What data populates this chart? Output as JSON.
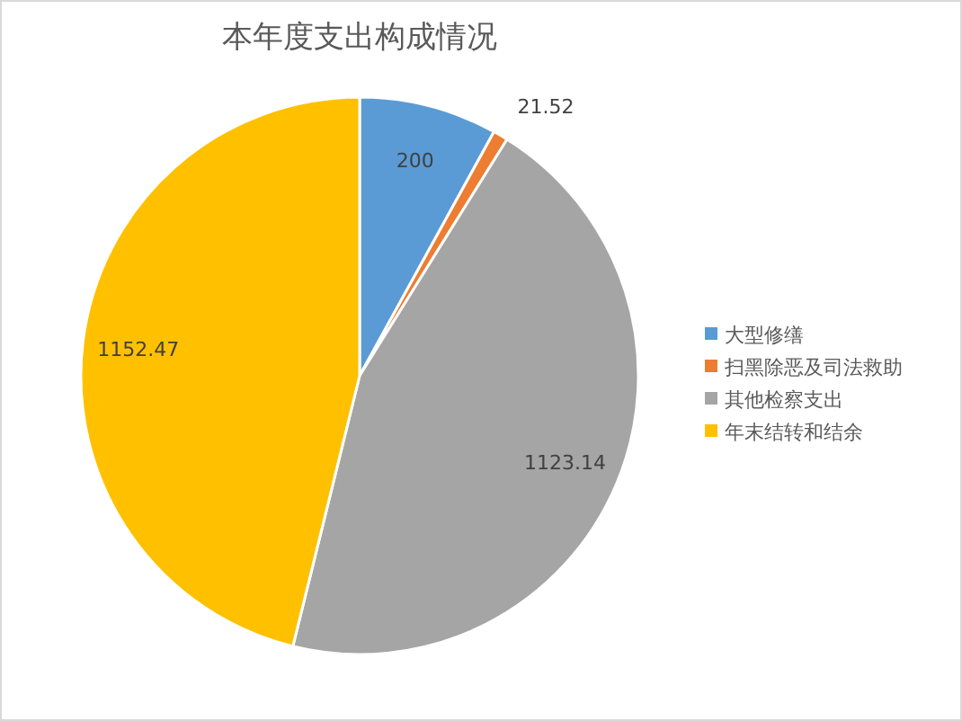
{
  "chart_data": {
    "type": "pie",
    "title": "本年度支出构成情况",
    "categories": [
      "大型修缮",
      "扫黑除恶及司法救助",
      "其他检察支出",
      "年末结转和结余"
    ],
    "values": [
      200,
      21.52,
      1123.14,
      1152.47
    ],
    "colors": [
      "#5b9bd5",
      "#ed7d31",
      "#a5a5a5",
      "#ffc000"
    ],
    "data_labels": true,
    "legend": "right"
  }
}
